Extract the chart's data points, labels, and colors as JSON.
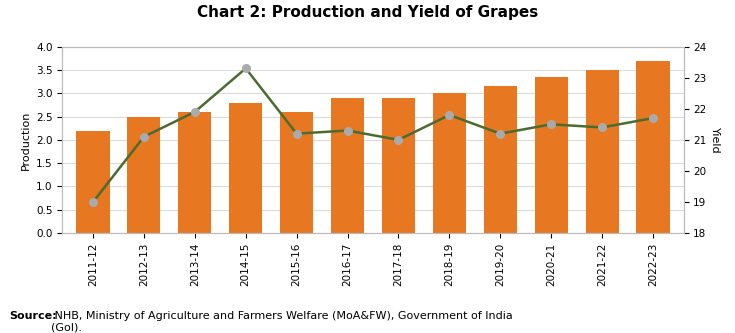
{
  "title": "Chart 2: Production and Yield of Grapes",
  "categories": [
    "2011-12",
    "2012-13",
    "2013-14",
    "2014-15",
    "2015-16",
    "2016-17",
    "2017-18",
    "2018-19",
    "2019-20",
    "2020-21",
    "2021-22",
    "2022-23"
  ],
  "production": [
    2.2,
    2.5,
    2.6,
    2.8,
    2.6,
    2.9,
    2.9,
    3.0,
    3.15,
    3.35,
    3.5,
    3.7
  ],
  "yield": [
    19.0,
    21.1,
    21.9,
    23.3,
    21.2,
    21.3,
    21.0,
    21.8,
    21.2,
    21.5,
    21.4,
    21.7
  ],
  "bar_color": "#E87722",
  "line_color": "#4B6B2F",
  "marker_color": "#AAAAAA",
  "left_ylabel": "Production",
  "right_ylabel": "Yield",
  "left_ylim": [
    0,
    4.0
  ],
  "right_ylim": [
    18,
    24
  ],
  "left_yticks": [
    0.0,
    0.5,
    1.0,
    1.5,
    2.0,
    2.5,
    3.0,
    3.5,
    4.0
  ],
  "right_yticks": [
    18,
    19,
    20,
    21,
    22,
    23,
    24
  ],
  "source_bold": "Source:",
  "source_text": " NHB, Ministry of Agriculture and Farmers Welfare (MoA&FW), Government of India\n(GoI).",
  "bg_color": "#FFFFFF",
  "plot_bg_color": "#FFFFFF",
  "title_fontsize": 11,
  "axis_fontsize": 8,
  "tick_fontsize": 7.5,
  "legend_fontsize": 8.5
}
